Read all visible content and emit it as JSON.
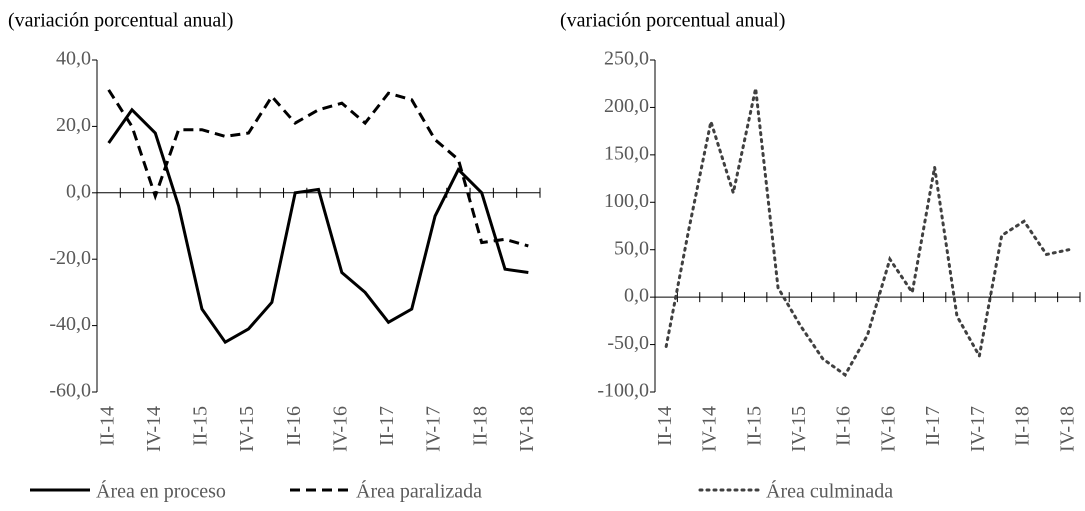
{
  "chart_data": [
    {
      "type": "line",
      "subtitle": "(variación porcentual anual)",
      "categories": [
        "II-14",
        null,
        "IV-14",
        null,
        "II-15",
        null,
        "IV-15",
        null,
        "II-16",
        null,
        "IV-16",
        null,
        "II-17",
        null,
        "IV-17",
        null,
        "II-18",
        null,
        "IV-18"
      ],
      "series": [
        {
          "name": "Área en proceso",
          "color": "#000000",
          "dash": "solid",
          "values": [
            15,
            25,
            18,
            -4,
            -35,
            -45,
            -41,
            -33,
            0,
            1,
            -24,
            -30,
            -39,
            -35,
            -7,
            7,
            0,
            -23,
            -24
          ]
        },
        {
          "name": "Área paralizada",
          "color": "#000000",
          "dash": "dashed",
          "values": [
            31,
            20,
            -1,
            19,
            19,
            17,
            18,
            29,
            21,
            25,
            27,
            21,
            30,
            28,
            16,
            10,
            -15,
            -14,
            -16
          ]
        }
      ],
      "ylim": [
        -60,
        40
      ],
      "yticks": [
        {
          "value": -60,
          "label": "-60,0"
        },
        {
          "value": -40,
          "label": "-40,0"
        },
        {
          "value": -20,
          "label": "-20,0"
        },
        {
          "value": 0,
          "label": "0,0"
        },
        {
          "value": 20,
          "label": "20,0"
        },
        {
          "value": 40,
          "label": "40,0"
        }
      ]
    },
    {
      "type": "line",
      "subtitle": "(variación porcentual anual)",
      "categories": [
        "II-14",
        null,
        "IV-14",
        null,
        "II-15",
        null,
        "IV-15",
        null,
        "II-16",
        null,
        "IV-16",
        null,
        "II-17",
        null,
        "IV-17",
        null,
        "II-18",
        null,
        "IV-18"
      ],
      "series": [
        {
          "name": "Área culminada",
          "color": "#404040",
          "dash": "dotted",
          "values": [
            -52,
            70,
            185,
            110,
            220,
            10,
            -30,
            -65,
            -82,
            -40,
            40,
            5,
            137,
            -20,
            -62,
            65,
            80,
            45,
            50
          ]
        }
      ],
      "ylim": [
        -100,
        250
      ],
      "yticks": [
        {
          "value": -100,
          "label": "-100,0"
        },
        {
          "value": -50,
          "label": "-50,0"
        },
        {
          "value": 0,
          "label": "0,0"
        },
        {
          "value": 50,
          "label": "50,0"
        },
        {
          "value": 100,
          "label": "100,0"
        },
        {
          "value": 150,
          "label": "150,0"
        },
        {
          "value": 200,
          "label": "200,0"
        },
        {
          "value": 250,
          "label": "250,0"
        }
      ]
    }
  ]
}
